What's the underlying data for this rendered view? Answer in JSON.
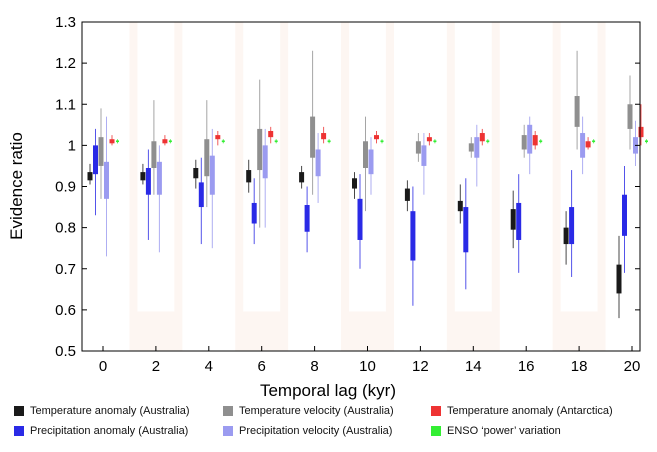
{
  "chart_data": {
    "type": "boxplot",
    "xlabel": "Temporal lag (kyr)",
    "ylabel": "Evidence ratio",
    "ylim": [
      0.5,
      1.3
    ],
    "yticks": [
      "0.5",
      "0.6",
      "0.7",
      "0.8",
      "0.9",
      "1",
      "1.1",
      "1.2",
      "1.3"
    ],
    "categories": [
      "0",
      "2",
      "4",
      "6",
      "8",
      "10",
      "12",
      "14",
      "16",
      "18",
      "20"
    ],
    "grid": false,
    "legend_position": "bottom",
    "series": [
      {
        "name": "Temperature anomaly (Australia)",
        "color": "#1a1a1a",
        "boxes": [
          {
            "whisker_low": 0.905,
            "q1": 0.915,
            "q3": 0.935,
            "whisker_high": 0.955
          },
          {
            "whisker_low": 0.905,
            "q1": 0.915,
            "q3": 0.935,
            "whisker_high": 0.955
          },
          {
            "whisker_low": 0.895,
            "q1": 0.92,
            "q3": 0.945,
            "whisker_high": 0.965
          },
          {
            "whisker_low": 0.885,
            "q1": 0.91,
            "q3": 0.94,
            "whisker_high": 0.965
          },
          {
            "whisker_low": 0.895,
            "q1": 0.91,
            "q3": 0.935,
            "whisker_high": 0.95
          },
          {
            "whisker_low": 0.87,
            "q1": 0.895,
            "q3": 0.92,
            "whisker_high": 0.935
          },
          {
            "whisker_low": 0.84,
            "q1": 0.865,
            "q3": 0.895,
            "whisker_high": 0.915
          },
          {
            "whisker_low": 0.81,
            "q1": 0.84,
            "q3": 0.865,
            "whisker_high": 0.905
          },
          {
            "whisker_low": 0.75,
            "q1": 0.795,
            "q3": 0.845,
            "whisker_high": 0.89
          },
          {
            "whisker_low": 0.71,
            "q1": 0.76,
            "q3": 0.8,
            "whisker_high": 0.84
          },
          {
            "whisker_low": 0.58,
            "q1": 0.64,
            "q3": 0.71,
            "whisker_high": 0.78
          }
        ]
      },
      {
        "name": "Precipitation anomaly (Australia)",
        "color": "#2a2ae6",
        "boxes": [
          {
            "whisker_low": 0.83,
            "q1": 0.93,
            "q3": 1.0,
            "whisker_high": 1.04
          },
          {
            "whisker_low": 0.77,
            "q1": 0.88,
            "q3": 0.945,
            "whisker_high": 0.99
          },
          {
            "whisker_low": 0.76,
            "q1": 0.85,
            "q3": 0.91,
            "whisker_high": 0.97
          },
          {
            "whisker_low": 0.76,
            "q1": 0.81,
            "q3": 0.86,
            "whisker_high": 0.92
          },
          {
            "whisker_low": 0.74,
            "q1": 0.79,
            "q3": 0.855,
            "whisker_high": 0.9
          },
          {
            "whisker_low": 0.7,
            "q1": 0.77,
            "q3": 0.87,
            "whisker_high": 0.93
          },
          {
            "whisker_low": 0.61,
            "q1": 0.72,
            "q3": 0.84,
            "whisker_high": 0.9
          },
          {
            "whisker_low": 0.65,
            "q1": 0.74,
            "q3": 0.85,
            "whisker_high": 0.92
          },
          {
            "whisker_low": 0.69,
            "q1": 0.77,
            "q3": 0.86,
            "whisker_high": 0.93
          },
          {
            "whisker_low": 0.68,
            "q1": 0.76,
            "q3": 0.85,
            "whisker_high": 0.94
          },
          {
            "whisker_low": 0.69,
            "q1": 0.78,
            "q3": 0.88,
            "whisker_high": 0.95
          }
        ]
      },
      {
        "name": "Temperature velocity (Australia)",
        "color": "#8f8f8f",
        "boxes": [
          {
            "whisker_low": 0.87,
            "q1": 0.95,
            "q3": 1.02,
            "whisker_high": 1.09
          },
          {
            "whisker_low": 0.88,
            "q1": 0.945,
            "q3": 1.01,
            "whisker_high": 1.11
          },
          {
            "whisker_low": 0.85,
            "q1": 0.925,
            "q3": 1.015,
            "whisker_high": 1.11
          },
          {
            "whisker_low": 0.8,
            "q1": 0.94,
            "q3": 1.04,
            "whisker_high": 1.16
          },
          {
            "whisker_low": 0.88,
            "q1": 0.97,
            "q3": 1.07,
            "whisker_high": 1.23
          },
          {
            "whisker_low": 0.84,
            "q1": 0.945,
            "q3": 1.01,
            "whisker_high": 1.07
          },
          {
            "whisker_low": 0.96,
            "q1": 0.98,
            "q3": 1.01,
            "whisker_high": 1.03
          },
          {
            "whisker_low": 0.97,
            "q1": 0.985,
            "q3": 1.005,
            "whisker_high": 1.02
          },
          {
            "whisker_low": 0.97,
            "q1": 0.99,
            "q3": 1.025,
            "whisker_high": 1.05
          },
          {
            "whisker_low": 0.99,
            "q1": 1.045,
            "q3": 1.12,
            "whisker_high": 1.23
          },
          {
            "whisker_low": 0.99,
            "q1": 1.04,
            "q3": 1.1,
            "whisker_high": 1.17
          }
        ]
      },
      {
        "name": "Precipitation velocity (Australia)",
        "color": "#9b9bf0",
        "boxes": [
          {
            "whisker_low": 0.73,
            "q1": 0.87,
            "q3": 0.96,
            "whisker_high": 1.07
          },
          {
            "whisker_low": 0.74,
            "q1": 0.88,
            "q3": 0.96,
            "whisker_high": 1.0
          },
          {
            "whisker_low": 0.75,
            "q1": 0.88,
            "q3": 0.975,
            "whisker_high": 1.04
          },
          {
            "whisker_low": 0.8,
            "q1": 0.92,
            "q3": 1.0,
            "whisker_high": 1.04
          },
          {
            "whisker_low": 0.86,
            "q1": 0.925,
            "q3": 0.99,
            "whisker_high": 1.03
          },
          {
            "whisker_low": 0.88,
            "q1": 0.93,
            "q3": 0.99,
            "whisker_high": 1.02
          },
          {
            "whisker_low": 0.88,
            "q1": 0.95,
            "q3": 1.0,
            "whisker_high": 1.03
          },
          {
            "whisker_low": 0.9,
            "q1": 0.97,
            "q3": 1.02,
            "whisker_high": 1.05
          },
          {
            "whisker_low": 0.93,
            "q1": 0.98,
            "q3": 1.05,
            "whisker_high": 1.07
          },
          {
            "whisker_low": 0.93,
            "q1": 0.97,
            "q3": 1.03,
            "whisker_high": 1.07
          },
          {
            "whisker_low": 0.95,
            "q1": 0.98,
            "q3": 1.02,
            "whisker_high": 1.06
          }
        ]
      },
      {
        "name": "Temperature anomaly (Antarctica)",
        "color": "#ee3333",
        "boxes": [
          {
            "whisker_low": 1.0,
            "q1": 1.005,
            "q3": 1.015,
            "whisker_high": 1.025
          },
          {
            "whisker_low": 1.0,
            "q1": 1.005,
            "q3": 1.015,
            "whisker_high": 1.025
          },
          {
            "whisker_low": 1.0,
            "q1": 1.015,
            "q3": 1.025,
            "whisker_high": 1.035
          },
          {
            "whisker_low": 1.005,
            "q1": 1.02,
            "q3": 1.035,
            "whisker_high": 1.045
          },
          {
            "whisker_low": 1.005,
            "q1": 1.015,
            "q3": 1.03,
            "whisker_high": 1.045
          },
          {
            "whisker_low": 1.005,
            "q1": 1.015,
            "q3": 1.025,
            "whisker_high": 1.035
          },
          {
            "whisker_low": 1.0,
            "q1": 1.01,
            "q3": 1.02,
            "whisker_high": 1.03
          },
          {
            "whisker_low": 1.0,
            "q1": 1.01,
            "q3": 1.03,
            "whisker_high": 1.04
          },
          {
            "whisker_low": 0.99,
            "q1": 1.0,
            "q3": 1.025,
            "whisker_high": 1.035
          },
          {
            "whisker_low": 0.99,
            "q1": 0.995,
            "q3": 1.01,
            "whisker_high": 1.02
          },
          {
            "whisker_low": 1.0,
            "q1": 1.02,
            "q3": 1.045,
            "whisker_high": 1.1
          }
        ]
      },
      {
        "name": "ENSO ‘power’ variation",
        "color": "#33ee33",
        "boxes": [
          {
            "whisker_low": 1.005,
            "q1": 1.008,
            "q3": 1.012,
            "whisker_high": 1.015
          },
          {
            "whisker_low": 1.005,
            "q1": 1.008,
            "q3": 1.012,
            "whisker_high": 1.015
          },
          {
            "whisker_low": 1.005,
            "q1": 1.008,
            "q3": 1.012,
            "whisker_high": 1.015
          },
          {
            "whisker_low": 1.005,
            "q1": 1.008,
            "q3": 1.012,
            "whisker_high": 1.015
          },
          {
            "whisker_low": 1.005,
            "q1": 1.008,
            "q3": 1.012,
            "whisker_high": 1.015
          },
          {
            "whisker_low": 1.005,
            "q1": 1.008,
            "q3": 1.012,
            "whisker_high": 1.015
          },
          {
            "whisker_low": 1.005,
            "q1": 1.008,
            "q3": 1.012,
            "whisker_high": 1.015
          },
          {
            "whisker_low": 1.005,
            "q1": 1.008,
            "q3": 1.012,
            "whisker_high": 1.015
          },
          {
            "whisker_low": 1.005,
            "q1": 1.008,
            "q3": 1.012,
            "whisker_high": 1.015
          },
          {
            "whisker_low": 1.005,
            "q1": 1.008,
            "q3": 1.012,
            "whisker_high": 1.015
          },
          {
            "whisker_low": 1.005,
            "q1": 1.008,
            "q3": 1.012,
            "whisker_high": 1.015
          }
        ]
      }
    ]
  }
}
